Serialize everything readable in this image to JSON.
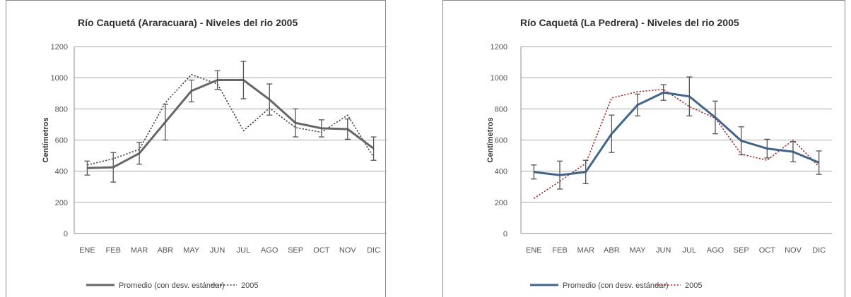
{
  "chart_data": [
    {
      "type": "line",
      "title": "Río Caquetá (Araracuara) - Niveles del rio 2005",
      "ylabel": "Centímetros",
      "xlabel": "",
      "ylim": [
        0,
        1200
      ],
      "yticks": [
        0,
        200,
        400,
        600,
        800,
        1000,
        1200
      ],
      "categories": [
        "ENE",
        "FEB",
        "MAR",
        "ABR",
        "MAY",
        "JUN",
        "JUL",
        "AGO",
        "SEP",
        "OCT",
        "NOV",
        "DIC"
      ],
      "grid": true,
      "legend": "bottom",
      "series": [
        {
          "name": "Promedio (con desv. estándar)",
          "style": "solid",
          "color": "#666666",
          "values": [
            420,
            425,
            515,
            715,
            915,
            985,
            985,
            860,
            710,
            675,
            670,
            545
          ],
          "error": [
            45,
            95,
            70,
            115,
            70,
            60,
            120,
            100,
            90,
            55,
            65,
            75
          ]
        },
        {
          "name": "2005",
          "style": "dotted",
          "color": "#444444",
          "values": [
            440,
            480,
            540,
            840,
            1020,
            960,
            660,
            805,
            680,
            650,
            760,
            490
          ]
        }
      ]
    },
    {
      "type": "line",
      "title": "Río Caquetá (La Pedrera) - Niveles del rio 2005",
      "ylabel": "Centímetros",
      "xlabel": "",
      "ylim": [
        0,
        1200
      ],
      "yticks": [
        0,
        200,
        400,
        600,
        800,
        1000,
        1200
      ],
      "categories": [
        "ENE",
        "FEB",
        "MAR",
        "ABR",
        "MAY",
        "JUN",
        "JUL",
        "AGO",
        "SEP",
        "OCT",
        "NOV",
        "DIC"
      ],
      "grid": true,
      "legend": "bottom",
      "series": [
        {
          "name": "Promedio (con desv. estándar)",
          "style": "solid",
          "color": "#41658a",
          "values": [
            395,
            375,
            395,
            640,
            825,
            905,
            880,
            745,
            595,
            545,
            525,
            455
          ],
          "error": [
            45,
            90,
            75,
            120,
            70,
            50,
            125,
            105,
            90,
            60,
            65,
            75
          ]
        },
        {
          "name": "2005",
          "style": "dotted",
          "color": "#a52a2a",
          "values": [
            225,
            335,
            450,
            870,
            910,
            925,
            815,
            740,
            510,
            470,
            600,
            430
          ]
        }
      ]
    }
  ]
}
